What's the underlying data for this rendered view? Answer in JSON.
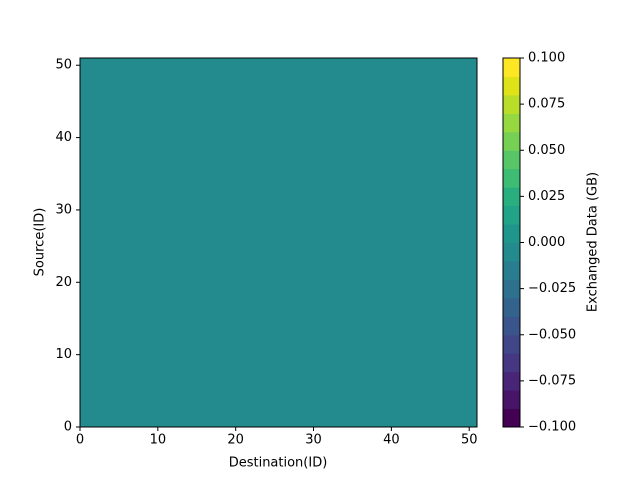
{
  "chart_data": {
    "type": "contour",
    "x_label": "Destination(ID)",
    "y_label": "Source(ID)",
    "colorbar_label": "Exchanged Data (GB)",
    "x_edges": [
      0,
      51
    ],
    "y_edges": [
      0,
      51
    ],
    "z": [
      [
        0
      ]
    ],
    "xlim": [
      0,
      51
    ],
    "ylim": [
      0,
      51
    ],
    "xticks": [
      0,
      10,
      20,
      30,
      40,
      50
    ],
    "yticks": [
      0,
      10,
      20,
      30,
      40,
      50
    ],
    "levels": [
      -0.1,
      -0.09,
      -0.08,
      -0.07,
      -0.06,
      -0.05,
      -0.04,
      -0.03,
      -0.02,
      -0.01,
      0,
      0.01,
      0.02,
      0.03,
      0.04,
      0.05,
      0.06,
      0.07,
      0.08,
      0.09,
      0.1
    ],
    "colors": [
      "#440154",
      "#481467",
      "#482576",
      "#453781",
      "#404688",
      "#39558c",
      "#33638d",
      "#2d718e",
      "#287d8e",
      "#238a8d",
      "#1f968b",
      "#20a386",
      "#29af7f",
      "#3dbc74",
      "#56c667",
      "#75d054",
      "#95d840",
      "#bade28",
      "#dde318",
      "#fde725"
    ],
    "clim": [
      -0.1,
      0.1
    ],
    "cticks": [
      {
        "value": -0.1,
        "label": "−0.100"
      },
      {
        "value": -0.075,
        "label": "−0.075"
      },
      {
        "value": -0.05,
        "label": "−0.050"
      },
      {
        "value": -0.025,
        "label": "−0.025"
      },
      {
        "value": 0,
        "label": "0.000"
      },
      0.025,
      {
        "value": 0.05,
        "label": "0.050"
      },
      0.075,
      {
        "value": 0.1,
        "label": "0.100"
      }
    ]
  }
}
